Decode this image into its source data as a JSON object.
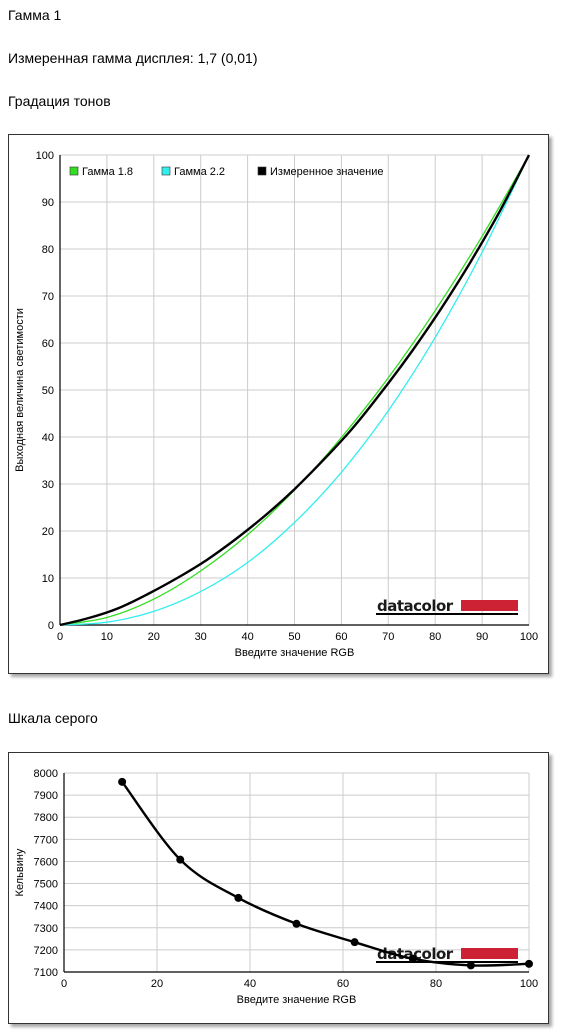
{
  "headings": {
    "gamma_title": "Гамма 1",
    "measured_gamma": "Измеренная гамма дисплея: 1,7 (0,01)",
    "tone_title": "Градация тонов",
    "gray_title": "Шкала серого"
  },
  "colors": {
    "gamma18": "#33dd22",
    "gamma22": "#33eeee",
    "measured": "#000000",
    "grid": "#cccccc",
    "brand_bar": "#cc2233"
  },
  "brand": {
    "text": "datacolor"
  },
  "chart_data": [
    {
      "type": "line",
      "xlabel": "Введите значение RGB",
      "ylabel": "Выходная величина светимости",
      "xlim": [
        0,
        100
      ],
      "ylim": [
        0,
        100
      ],
      "x_ticks": [
        "0",
        "10",
        "20",
        "30",
        "40",
        "50",
        "60",
        "70",
        "80",
        "90",
        "100"
      ],
      "y_ticks": [
        "0",
        "10",
        "20",
        "30",
        "40",
        "50",
        "60",
        "70",
        "80",
        "90",
        "100"
      ],
      "grid": true,
      "legend_position": "top-left",
      "series": [
        {
          "name": "Гамма 1.8",
          "color": "#33dd22",
          "x": [
            0,
            10,
            20,
            30,
            40,
            50,
            60,
            70,
            80,
            90,
            100
          ],
          "y": [
            0,
            1.6,
            5.5,
            11.5,
            19.2,
            28.7,
            39.9,
            52.6,
            66.9,
            82.7,
            100
          ]
        },
        {
          "name": "Гамма 2.2",
          "color": "#33eeee",
          "x": [
            0,
            10,
            20,
            30,
            40,
            50,
            60,
            70,
            80,
            90,
            100
          ],
          "y": [
            0,
            0.6,
            2.9,
            7.1,
            13.3,
            21.8,
            32.5,
            45.6,
            61.2,
            79.3,
            100
          ]
        },
        {
          "name": "Измеренное значение",
          "color": "#000000",
          "x": [
            0,
            6.25,
            12.5,
            18.75,
            25,
            31.25,
            37.5,
            43.75,
            50,
            56.25,
            62.5,
            68.75,
            75,
            81.25,
            87.5,
            93.75,
            100
          ],
          "y": [
            0,
            1.5,
            3.6,
            6.6,
            10.0,
            13.8,
            18.3,
            23.3,
            28.9,
            35.2,
            42.0,
            49.8,
            58.2,
            67.3,
            77.2,
            88.0,
            100
          ]
        }
      ]
    },
    {
      "type": "line",
      "xlabel": "Введите значение RGB",
      "ylabel": "Кельвину",
      "xlim": [
        0,
        100
      ],
      "ylim": [
        7100,
        8000
      ],
      "x_ticks": [
        "0",
        "20",
        "40",
        "60",
        "80",
        "100"
      ],
      "y_ticks": [
        "7100",
        "7200",
        "7300",
        "7400",
        "7500",
        "7600",
        "7700",
        "7800",
        "7900",
        "8000"
      ],
      "grid": true,
      "series": [
        {
          "color": "#000000",
          "x": [
            12.5,
            25,
            37.5,
            50,
            62.5,
            75,
            87.5,
            100
          ],
          "y": [
            7960,
            7608,
            7435,
            7318,
            7235,
            7160,
            7130,
            7137
          ]
        }
      ]
    }
  ]
}
